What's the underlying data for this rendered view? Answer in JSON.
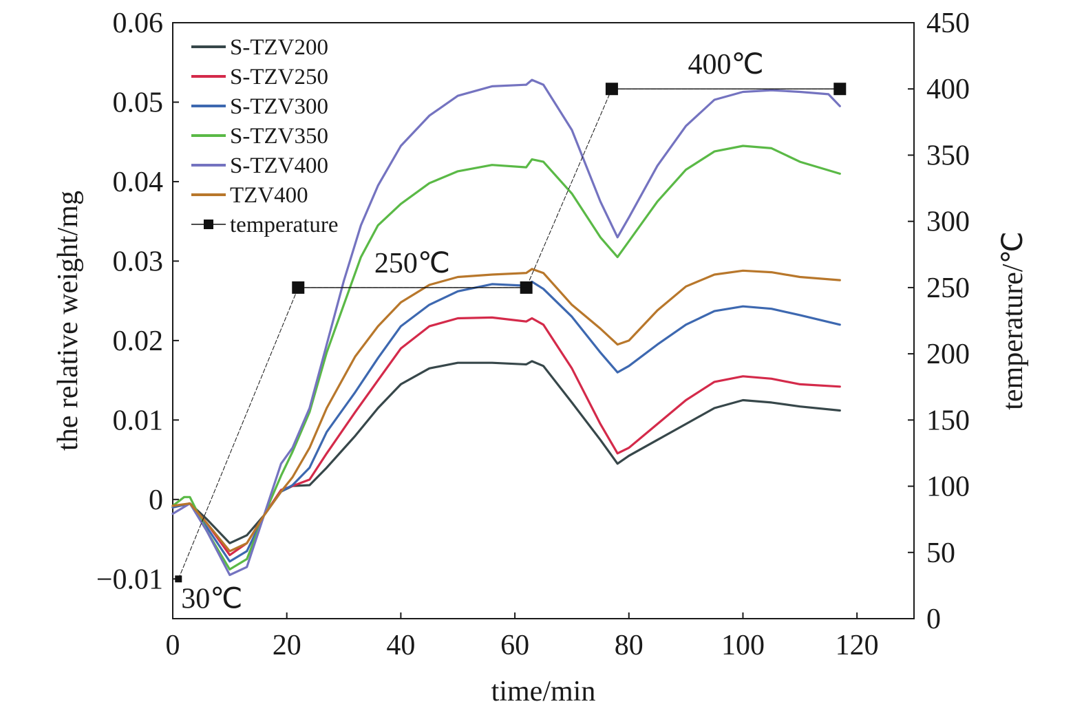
{
  "chart_data": {
    "type": "line",
    "x_axis": {
      "label": "time/min",
      "range": [
        0,
        130
      ],
      "ticks": [
        0,
        20,
        40,
        60,
        80,
        100,
        120
      ]
    },
    "y_axis_left": {
      "label": "the relative weight/mg",
      "range": [
        -0.015,
        0.06
      ],
      "ticks": [
        -0.01,
        0,
        0.01,
        0.02,
        0.03,
        0.04,
        0.05,
        0.06
      ],
      "tick_labels": [
        "−0.01",
        "0",
        "0.01",
        "0.02",
        "0.03",
        "0.04",
        "0.05",
        "0.06"
      ]
    },
    "y_axis_right": {
      "label": "temperature/℃",
      "range": [
        0,
        450
      ],
      "ticks": [
        0,
        50,
        100,
        150,
        200,
        250,
        300,
        350,
        400,
        450
      ]
    },
    "legend_position": "top-left",
    "grid": false,
    "series": [
      {
        "name": "S-TZV200",
        "color": "#37474a",
        "axis": "left",
        "points": [
          [
            0,
            -0.001
          ],
          [
            3,
            -0.0005
          ],
          [
            6,
            -0.0025
          ],
          [
            10,
            -0.0055
          ],
          [
            13,
            -0.0045
          ],
          [
            16,
            -0.002
          ],
          [
            19,
            0.001
          ],
          [
            21,
            0.0017
          ],
          [
            24,
            0.0018
          ],
          [
            27,
            0.004
          ],
          [
            32,
            0.008
          ],
          [
            36,
            0.0115
          ],
          [
            40,
            0.0145
          ],
          [
            45,
            0.0165
          ],
          [
            50,
            0.0172
          ],
          [
            56,
            0.0172
          ],
          [
            62,
            0.017
          ],
          [
            63,
            0.0174
          ],
          [
            65,
            0.0168
          ],
          [
            70,
            0.0122
          ],
          [
            75,
            0.0075
          ],
          [
            78,
            0.0045
          ],
          [
            80,
            0.0055
          ],
          [
            85,
            0.0075
          ],
          [
            90,
            0.0095
          ],
          [
            95,
            0.0115
          ],
          [
            100,
            0.0125
          ],
          [
            105,
            0.0122
          ],
          [
            110,
            0.0117
          ],
          [
            117,
            0.0112
          ]
        ]
      },
      {
        "name": "S-TZV250",
        "color": "#d42a4a",
        "axis": "left",
        "points": [
          [
            0,
            -0.001
          ],
          [
            3,
            -0.0005
          ],
          [
            6,
            -0.003
          ],
          [
            10,
            -0.007
          ],
          [
            13,
            -0.0055
          ],
          [
            16,
            -0.002
          ],
          [
            19,
            0.0012
          ],
          [
            21,
            0.0017
          ],
          [
            24,
            0.0025
          ],
          [
            27,
            0.0058
          ],
          [
            32,
            0.011
          ],
          [
            36,
            0.015
          ],
          [
            40,
            0.019
          ],
          [
            45,
            0.0218
          ],
          [
            50,
            0.0228
          ],
          [
            56,
            0.0229
          ],
          [
            62,
            0.0224
          ],
          [
            63,
            0.0228
          ],
          [
            65,
            0.022
          ],
          [
            70,
            0.0165
          ],
          [
            75,
            0.0095
          ],
          [
            78,
            0.0058
          ],
          [
            80,
            0.0065
          ],
          [
            85,
            0.0095
          ],
          [
            90,
            0.0125
          ],
          [
            95,
            0.0148
          ],
          [
            100,
            0.0155
          ],
          [
            105,
            0.0152
          ],
          [
            110,
            0.0145
          ],
          [
            117,
            0.0142
          ]
        ]
      },
      {
        "name": "S-TZV300",
        "color": "#3d68b0",
        "axis": "left",
        "points": [
          [
            0,
            -0.001
          ],
          [
            3,
            -0.0005
          ],
          [
            6,
            -0.0035
          ],
          [
            10,
            -0.0078
          ],
          [
            13,
            -0.0065
          ],
          [
            16,
            -0.002
          ],
          [
            19,
            0.001
          ],
          [
            21,
            0.0018
          ],
          [
            24,
            0.004
          ],
          [
            27,
            0.0085
          ],
          [
            32,
            0.0135
          ],
          [
            36,
            0.0178
          ],
          [
            40,
            0.0218
          ],
          [
            45,
            0.0245
          ],
          [
            50,
            0.0262
          ],
          [
            56,
            0.0271
          ],
          [
            62,
            0.0269
          ],
          [
            63,
            0.0274
          ],
          [
            65,
            0.0265
          ],
          [
            70,
            0.023
          ],
          [
            75,
            0.0185
          ],
          [
            78,
            0.016
          ],
          [
            80,
            0.0168
          ],
          [
            85,
            0.0195
          ],
          [
            90,
            0.022
          ],
          [
            95,
            0.0237
          ],
          [
            100,
            0.0243
          ],
          [
            105,
            0.024
          ],
          [
            110,
            0.0232
          ],
          [
            117,
            0.022
          ]
        ]
      },
      {
        "name": "S-TZV350",
        "color": "#5ab946",
        "axis": "left",
        "points": [
          [
            0,
            -0.0008
          ],
          [
            2,
            0.0003
          ],
          [
            3,
            0.0003
          ],
          [
            6,
            -0.004
          ],
          [
            10,
            -0.0088
          ],
          [
            13,
            -0.0075
          ],
          [
            16,
            -0.002
          ],
          [
            19,
            0.003
          ],
          [
            21,
            0.006
          ],
          [
            24,
            0.011
          ],
          [
            27,
            0.0185
          ],
          [
            30,
            0.0245
          ],
          [
            33,
            0.0305
          ],
          [
            36,
            0.0345
          ],
          [
            40,
            0.0372
          ],
          [
            45,
            0.0398
          ],
          [
            50,
            0.0413
          ],
          [
            56,
            0.0421
          ],
          [
            62,
            0.0418
          ],
          [
            63,
            0.0428
          ],
          [
            65,
            0.0425
          ],
          [
            70,
            0.0385
          ],
          [
            75,
            0.033
          ],
          [
            78,
            0.0305
          ],
          [
            80,
            0.0325
          ],
          [
            85,
            0.0375
          ],
          [
            90,
            0.0415
          ],
          [
            95,
            0.0438
          ],
          [
            100,
            0.0445
          ],
          [
            105,
            0.0442
          ],
          [
            110,
            0.0425
          ],
          [
            117,
            0.041
          ]
        ]
      },
      {
        "name": "S-TZV400",
        "color": "#7473c0",
        "axis": "left",
        "points": [
          [
            0,
            -0.0018
          ],
          [
            3,
            -0.0005
          ],
          [
            6,
            -0.004
          ],
          [
            10,
            -0.0095
          ],
          [
            13,
            -0.0085
          ],
          [
            16,
            -0.002
          ],
          [
            19,
            0.0045
          ],
          [
            21,
            0.0065
          ],
          [
            24,
            0.0115
          ],
          [
            27,
            0.0195
          ],
          [
            30,
            0.0275
          ],
          [
            33,
            0.0345
          ],
          [
            36,
            0.0395
          ],
          [
            40,
            0.0445
          ],
          [
            45,
            0.0483
          ],
          [
            50,
            0.0508
          ],
          [
            56,
            0.052
          ],
          [
            62,
            0.0522
          ],
          [
            63,
            0.0528
          ],
          [
            65,
            0.0522
          ],
          [
            70,
            0.0465
          ],
          [
            75,
            0.0375
          ],
          [
            78,
            0.033
          ],
          [
            80,
            0.0355
          ],
          [
            85,
            0.042
          ],
          [
            90,
            0.047
          ],
          [
            95,
            0.0503
          ],
          [
            100,
            0.0513
          ],
          [
            105,
            0.0515
          ],
          [
            110,
            0.0513
          ],
          [
            115,
            0.051
          ],
          [
            117,
            0.0495
          ]
        ]
      },
      {
        "name": "TZV400",
        "color": "#b8772b",
        "axis": "left",
        "points": [
          [
            0,
            -0.0008
          ],
          [
            3,
            -0.0005
          ],
          [
            6,
            -0.003
          ],
          [
            10,
            -0.0065
          ],
          [
            13,
            -0.0055
          ],
          [
            16,
            -0.002
          ],
          [
            19,
            0.001
          ],
          [
            21,
            0.0028
          ],
          [
            24,
            0.0065
          ],
          [
            27,
            0.0115
          ],
          [
            32,
            0.018
          ],
          [
            36,
            0.0218
          ],
          [
            40,
            0.0248
          ],
          [
            45,
            0.027
          ],
          [
            50,
            0.028
          ],
          [
            56,
            0.0283
          ],
          [
            62,
            0.0285
          ],
          [
            63,
            0.029
          ],
          [
            65,
            0.0285
          ],
          [
            70,
            0.0245
          ],
          [
            75,
            0.0215
          ],
          [
            78,
            0.0195
          ],
          [
            80,
            0.02
          ],
          [
            85,
            0.0238
          ],
          [
            90,
            0.0268
          ],
          [
            95,
            0.0283
          ],
          [
            100,
            0.0288
          ],
          [
            105,
            0.0286
          ],
          [
            110,
            0.028
          ],
          [
            117,
            0.0276
          ]
        ]
      },
      {
        "name": "temperature",
        "color": "#111111",
        "axis": "right",
        "marker": "square",
        "points": [
          [
            1,
            30
          ],
          [
            22,
            250
          ],
          [
            62,
            250
          ],
          [
            77,
            400
          ],
          [
            117,
            400
          ]
        ]
      }
    ],
    "annotations": [
      {
        "text": "30℃",
        "x": 1,
        "y": 30,
        "axis": "right"
      },
      {
        "text": "250℃",
        "x": 42,
        "y": 250,
        "axis": "right"
      },
      {
        "text": "400℃",
        "x": 97,
        "y": 400,
        "axis": "right"
      }
    ]
  }
}
